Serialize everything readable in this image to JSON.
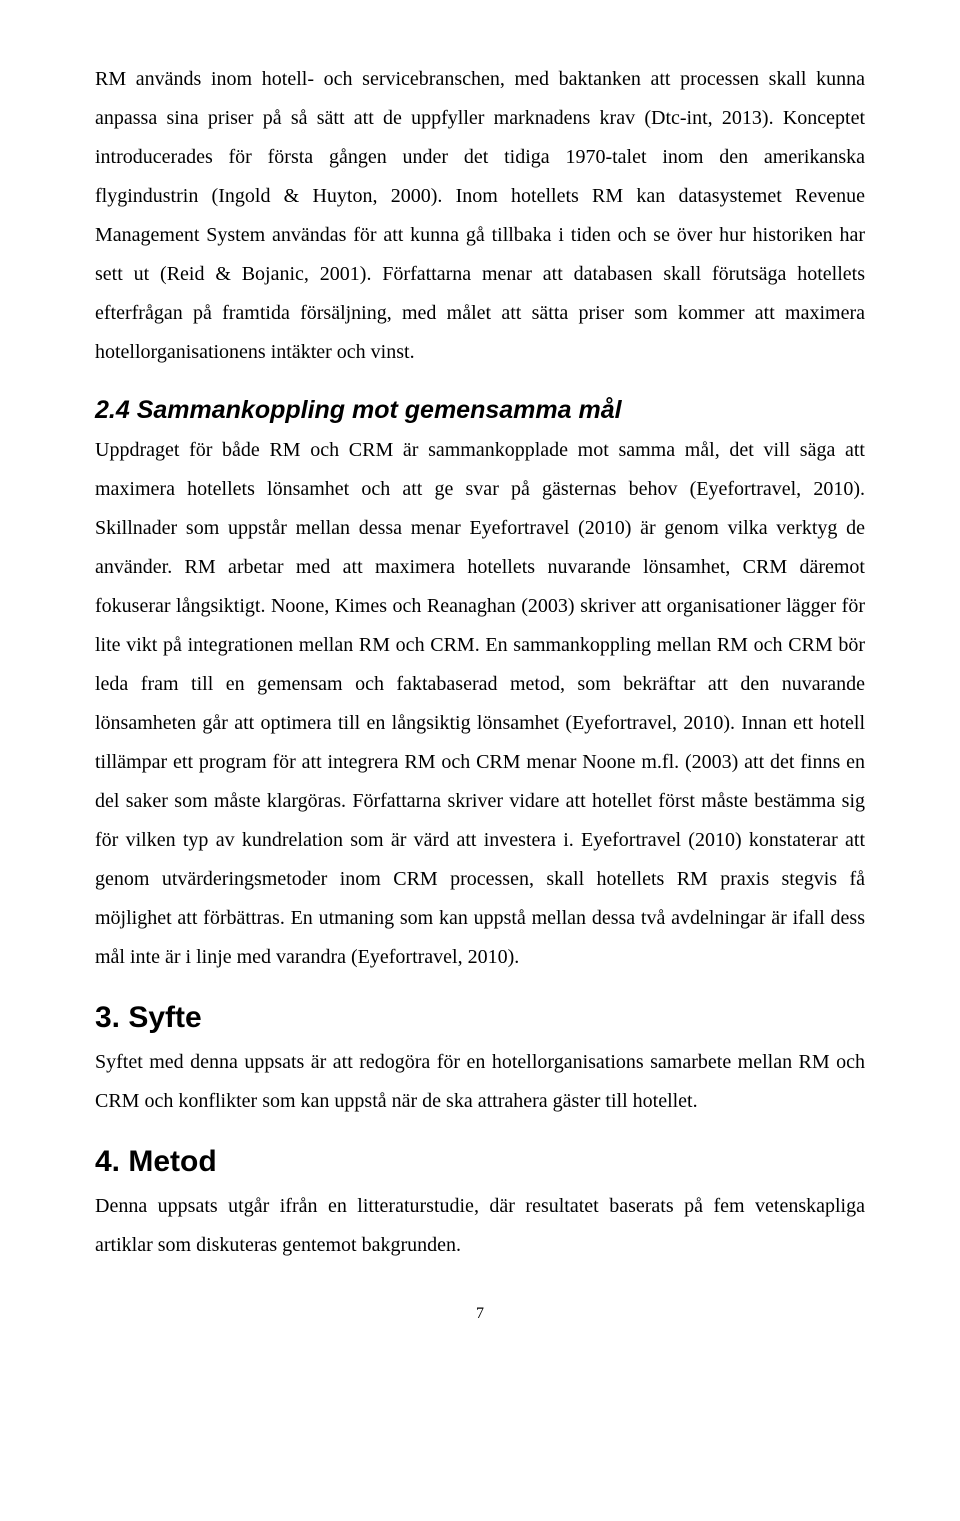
{
  "para1": "RM används inom hotell- och servicebranschen, med baktanken att processen skall kunna anpassa sina priser på så sätt att de uppfyller marknadens krav (Dtc-int, 2013). Konceptet introducerades för första gången under det tidiga 1970-talet inom den amerikanska flygindustrin (Ingold & Huyton, 2000). Inom hotellets RM kan datasystemet Revenue Management System användas för att kunna gå tillbaka i tiden och se över hur historiken har sett ut (Reid & Bojanic, 2001). Författarna menar att databasen skall förutsäga hotellets efterfrågan på framtida försäljning, med målet att sätta priser som kommer att maximera hotellorganisationens intäkter och vinst.",
  "sec24_title": "2.4 Sammankoppling mot gemensamma mål",
  "para2": "Uppdraget för både RM och CRM är sammankopplade mot samma mål, det vill säga att maximera hotellets lönsamhet och att ge svar på gästernas behov (Eyefortravel, 2010). Skillnader som uppstår mellan dessa menar Eyefortravel (2010) är genom vilka verktyg de använder. RM arbetar med att maximera hotellets nuvarande lönsamhet, CRM däremot fokuserar långsiktigt. Noone, Kimes och Reanaghan (2003) skriver att organisationer lägger för lite vikt på integrationen mellan RM och CRM. En sammankoppling mellan RM och CRM bör leda fram till en gemensam och faktabaserad metod, som bekräftar att den nuvarande lönsamheten går att optimera till en långsiktig lönsamhet (Eyefortravel, 2010). Innan ett hotell tillämpar ett program för att integrera RM och CRM menar Noone m.fl. (2003) att det finns en del saker som måste klargöras. Författarna skriver vidare att hotellet först måste bestämma sig för vilken typ av kundrelation som är värd att investera i. Eyefortravel (2010) konstaterar att genom utvärderingsmetoder inom CRM processen, skall hotellets RM praxis stegvis få möjlighet att förbättras. En utmaning som kan uppstå mellan dessa två avdelningar är ifall dess mål inte är i linje med varandra (Eyefortravel, 2010).",
  "sec3_title": "3. Syfte",
  "para3": "Syftet med denna uppsats är att redogöra för en hotellorganisations samarbete mellan RM och CRM och konflikter som kan uppstå när de ska attrahera gäster till hotellet.",
  "sec4_title": "4. Metod",
  "para4": "Denna uppsats utgår ifrån en litteraturstudie, där resultatet baserats på fem vetenskapliga artiklar som diskuteras gentemot bakgrunden.",
  "page_number": "7"
}
